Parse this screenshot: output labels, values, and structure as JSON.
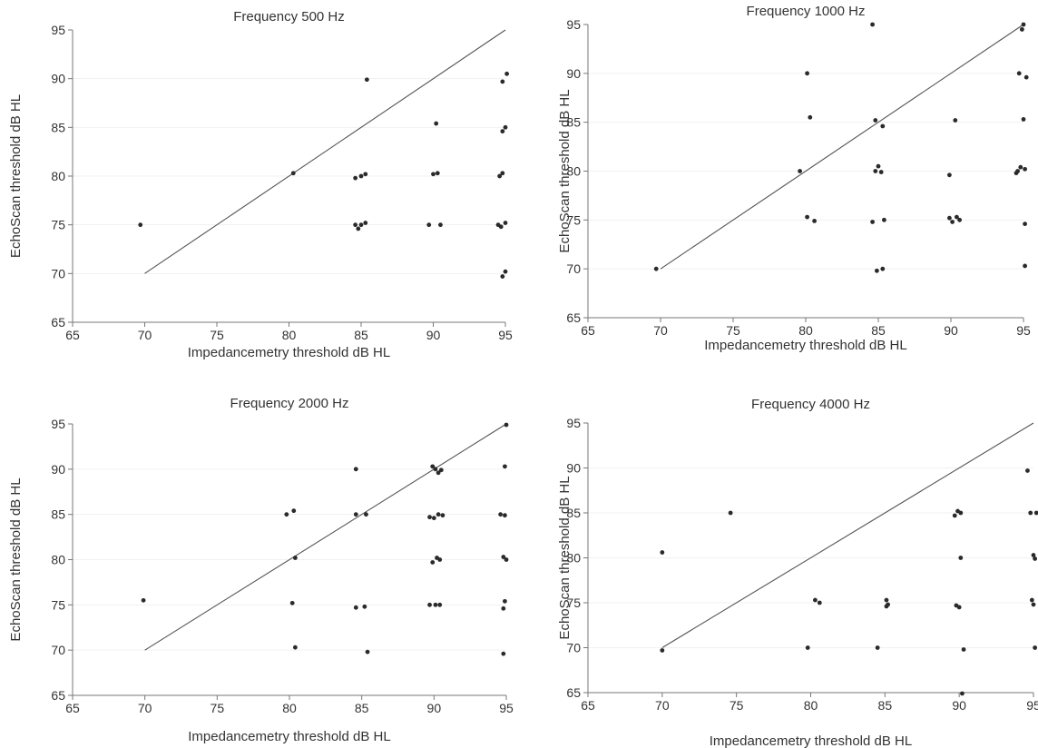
{
  "chart_data": [
    {
      "type": "scatter",
      "title": "Frequency 500 Hz",
      "xlabel": "Impedancemetry threshold  dB HL",
      "ylabel": "EchoScan threshold  dB HL",
      "xlim": [
        65,
        95
      ],
      "ylim": [
        65,
        95
      ],
      "xticks": [
        65,
        70,
        75,
        80,
        85,
        90,
        95
      ],
      "yticks": [
        65,
        70,
        75,
        80,
        85,
        90,
        95
      ],
      "grid": true,
      "reference_line": [
        [
          70,
          70
        ],
        [
          95,
          95
        ]
      ],
      "points": [
        [
          69.7,
          75
        ],
        [
          80.3,
          80.3
        ],
        [
          84.6,
          79.8
        ],
        [
          85,
          80
        ],
        [
          85.3,
          80.2
        ],
        [
          85.4,
          89.9
        ],
        [
          84.6,
          75
        ],
        [
          84.8,
          74.6
        ],
        [
          85,
          75
        ],
        [
          85.3,
          75.2
        ],
        [
          89.7,
          75
        ],
        [
          90.5,
          75
        ],
        [
          90,
          80.2
        ],
        [
          90.3,
          80.3
        ],
        [
          90.2,
          85.4
        ],
        [
          94.6,
          80
        ],
        [
          94.8,
          80.3
        ],
        [
          94.5,
          75
        ],
        [
          94.7,
          74.8
        ],
        [
          95,
          75.2
        ],
        [
          94.8,
          69.7
        ],
        [
          95,
          70.2
        ],
        [
          94.8,
          84.6
        ],
        [
          95,
          85
        ],
        [
          94.8,
          89.7
        ],
        [
          95.1,
          90.5
        ]
      ]
    },
    {
      "type": "scatter",
      "title": "Frequency 1000 Hz",
      "xlabel": "Impedancemetry threshold  dB HL",
      "ylabel": "EchoScan threshold  dB HL",
      "xlim": [
        65,
        95
      ],
      "ylim": [
        65,
        95
      ],
      "xticks": [
        65,
        70,
        75,
        80,
        85,
        90,
        95
      ],
      "yticks": [
        65,
        70,
        75,
        80,
        85,
        90,
        95
      ],
      "grid": true,
      "reference_line": [
        [
          70,
          70
        ],
        [
          95,
          95
        ]
      ],
      "points": [
        [
          69.7,
          70
        ],
        [
          79.6,
          80
        ],
        [
          80.1,
          90
        ],
        [
          80.3,
          85.5
        ],
        [
          80.1,
          75.3
        ],
        [
          80.6,
          74.9
        ],
        [
          84.6,
          95
        ],
        [
          84.8,
          85.2
        ],
        [
          85.3,
          84.6
        ],
        [
          84.8,
          80
        ],
        [
          85,
          80.5
        ],
        [
          85.2,
          79.9
        ],
        [
          84.6,
          74.8
        ],
        [
          85.4,
          75
        ],
        [
          84.9,
          69.8
        ],
        [
          85.3,
          70
        ],
        [
          89.9,
          79.6
        ],
        [
          90.3,
          85.2
        ],
        [
          89.9,
          75.2
        ],
        [
          90.1,
          74.8
        ],
        [
          90.4,
          75.3
        ],
        [
          90.6,
          75
        ],
        [
          94.6,
          80
        ],
        [
          94.8,
          80.4
        ],
        [
          95.1,
          80.2
        ],
        [
          94.5,
          79.8
        ],
        [
          95,
          85.3
        ],
        [
          94.7,
          90
        ],
        [
          95.2,
          89.6
        ],
        [
          94.9,
          94.5
        ],
        [
          95,
          95
        ],
        [
          95.1,
          74.6
        ],
        [
          95.1,
          70.3
        ]
      ]
    },
    {
      "type": "scatter",
      "title": "Frequency 2000 Hz",
      "xlabel": "Impedancemetry threshold  dB HL",
      "ylabel": "EchoScan threshold  dB HL",
      "xlim": [
        65,
        95
      ],
      "ylim": [
        65,
        95
      ],
      "xticks": [
        65,
        70,
        75,
        80,
        85,
        90,
        95
      ],
      "yticks": [
        65,
        70,
        75,
        80,
        85,
        90,
        95
      ],
      "grid": true,
      "reference_line": [
        [
          70,
          70
        ],
        [
          95,
          95
        ]
      ],
      "points": [
        [
          69.9,
          75.5
        ],
        [
          79.8,
          85
        ],
        [
          80.3,
          85.4
        ],
        [
          80.4,
          80.2
        ],
        [
          80.2,
          75.2
        ],
        [
          80.4,
          70.3
        ],
        [
          84.6,
          90
        ],
        [
          84.6,
          85
        ],
        [
          85.3,
          85
        ],
        [
          84.6,
          74.7
        ],
        [
          85.2,
          74.8
        ],
        [
          85.4,
          69.8
        ],
        [
          89.9,
          79.7
        ],
        [
          90.2,
          80.2
        ],
        [
          90.4,
          80
        ],
        [
          89.7,
          75
        ],
        [
          90.1,
          75
        ],
        [
          90.4,
          75
        ],
        [
          89.7,
          84.7
        ],
        [
          90,
          84.6
        ],
        [
          90.3,
          85
        ],
        [
          90.6,
          84.9
        ],
        [
          89.9,
          90.3
        ],
        [
          90.1,
          90
        ],
        [
          90.3,
          89.6
        ],
        [
          90.5,
          89.9
        ],
        [
          94.6,
          85
        ],
        [
          94.9,
          84.9
        ],
        [
          94.8,
          80.3
        ],
        [
          95,
          80
        ],
        [
          94.9,
          75.4
        ],
        [
          94.8,
          74.6
        ],
        [
          94.8,
          69.6
        ],
        [
          94.9,
          90.3
        ],
        [
          95,
          94.9
        ]
      ]
    },
    {
      "type": "scatter",
      "title": "Frequency 4000 Hz",
      "xlabel": "Impedancemetry threshold  dB HL",
      "ylabel": "EchoScan threshold  dB HL",
      "xlim": [
        65,
        95
      ],
      "ylim": [
        65,
        95
      ],
      "xticks": [
        65,
        70,
        75,
        80,
        85,
        90,
        95
      ],
      "yticks": [
        65,
        70,
        75,
        80,
        85,
        90,
        95
      ],
      "grid": true,
      "reference_line": [
        [
          70,
          70
        ],
        [
          95,
          95
        ]
      ],
      "points": [
        [
          70,
          80.6
        ],
        [
          70,
          69.7
        ],
        [
          74.6,
          85
        ],
        [
          79.8,
          70
        ],
        [
          80.3,
          75.3
        ],
        [
          80.6,
          75
        ],
        [
          84.5,
          70
        ],
        [
          85.1,
          75.3
        ],
        [
          85.2,
          74.8
        ],
        [
          85.1,
          74.6
        ],
        [
          89.7,
          84.7
        ],
        [
          89.9,
          85.2
        ],
        [
          90.1,
          85
        ],
        [
          89.8,
          74.7
        ],
        [
          90,
          74.5
        ],
        [
          90.1,
          80
        ],
        [
          90.3,
          69.8
        ],
        [
          90.2,
          64.9
        ],
        [
          94.6,
          89.7
        ],
        [
          94.8,
          85
        ],
        [
          95.2,
          85
        ],
        [
          95,
          80.3
        ],
        [
          95.1,
          79.9
        ],
        [
          94.9,
          75.3
        ],
        [
          95,
          74.8
        ],
        [
          95.1,
          70
        ]
      ]
    }
  ]
}
